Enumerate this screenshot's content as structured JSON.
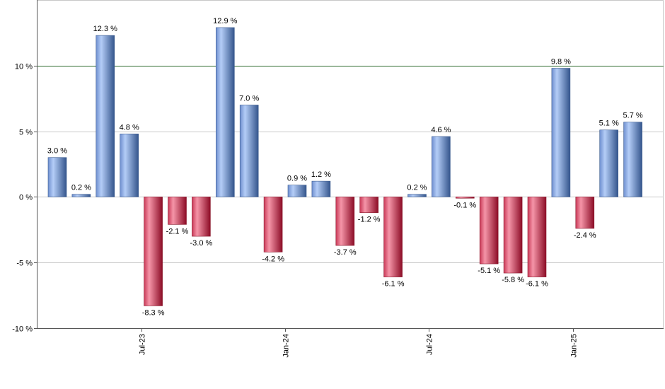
{
  "chart_data": {
    "type": "bar",
    "title": "",
    "xlabel": "",
    "ylabel": "",
    "ylim": [
      -10,
      15
    ],
    "yticks": [
      -10,
      -5,
      0,
      5,
      10
    ],
    "ytick_labels": [
      "-10 %",
      "-5 %",
      "0 %",
      "5 %",
      "10 %"
    ],
    "reference_line": 10,
    "xticks": [
      {
        "label": "Jul-23",
        "after_index": 3
      },
      {
        "label": "Jan-24",
        "after_index": 9
      },
      {
        "label": "Jul-24",
        "after_index": 15
      },
      {
        "label": "Jan-25",
        "after_index": 21
      }
    ],
    "values": [
      3.0,
      0.2,
      12.3,
      4.8,
      -8.3,
      -2.1,
      -3.0,
      12.9,
      7.0,
      -4.2,
      0.9,
      1.2,
      -3.7,
      -1.2,
      -6.1,
      0.2,
      4.6,
      -0.1,
      -5.1,
      -5.8,
      -6.1,
      9.8,
      -2.4,
      5.1,
      5.7
    ],
    "data_labels": [
      "3.0 %",
      "0.2 %",
      "12.3 %",
      "4.8 %",
      "-8.3 %",
      "-2.1 %",
      "-3.0 %",
      "12.9 %",
      "7.0 %",
      "-4.2 %",
      "0.9 %",
      "1.2 %",
      "-3.7 %",
      "-1.2 %",
      "-6.1 %",
      "0.2 %",
      "4.6 %",
      "-0.1 %",
      "-5.1 %",
      "-5.8 %",
      "-6.1 %",
      "9.8 %",
      "-2.4 %",
      "5.1 %",
      "5.7 %"
    ],
    "colors": {
      "positive_light": "#a9c4f5",
      "positive_dark": "#3e5f96",
      "negative_light": "#f08aa0",
      "negative_dark": "#a0102c",
      "reference_line": "#2e6b2e",
      "grid": "#c8c8c8",
      "axis": "#555555"
    }
  }
}
